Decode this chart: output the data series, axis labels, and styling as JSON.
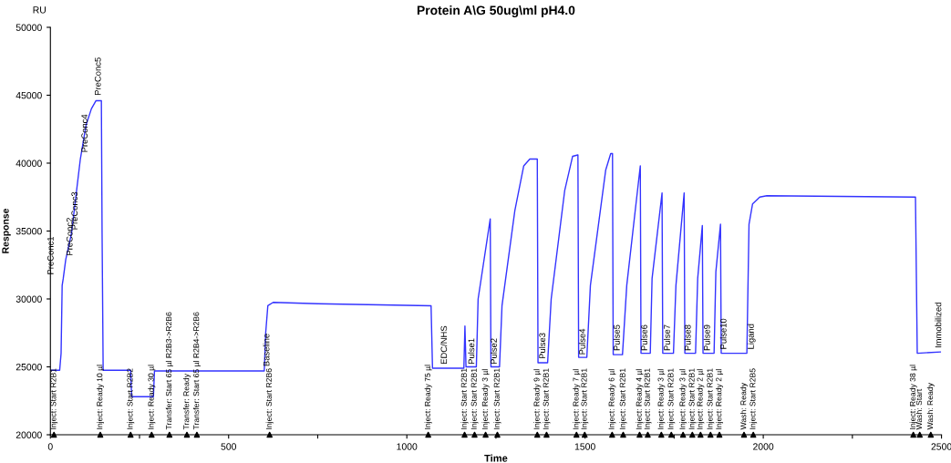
{
  "chart_data": {
    "type": "line",
    "title": "Protein A\\G 50ug\\ml pH4.0",
    "xlabel": "Time",
    "ylabel": "Response",
    "xlim": [
      0,
      2500
    ],
    "ylim": [
      20000,
      50000
    ],
    "xticks": [
      0,
      {
        "value": 250,
        "label": null
      },
      500,
      {
        "value": 750,
        "label": null
      },
      1000,
      {
        "value": 1250,
        "label": null
      },
      1500,
      {
        "value": 1750,
        "label": null
      },
      2000,
      {
        "value": 2250,
        "label": null
      },
      2500
    ],
    "yticks": [
      20000,
      25000,
      30000,
      35000,
      40000,
      45000,
      50000
    ],
    "grid": false,
    "marker": "none",
    "line_style": "solid",
    "series": [
      {
        "color": "#3333ff",
        "x": [
          0,
          26,
          30,
          33,
          36,
          43,
          59,
          84,
          100,
          115,
          128,
          143,
          145,
          148,
          225,
          228,
          289,
          292,
          600,
          604,
          610,
          625,
          750,
          1068,
          1072,
          1160,
          1163,
          1166,
          1195,
          1200,
          1234,
          1236,
          1260,
          1267,
          1303,
          1328,
          1345,
          1366,
          1368,
          1395,
          1405,
          1443,
          1465,
          1480,
          1482,
          1505,
          1515,
          1558,
          1572,
          1577,
          1579,
          1605,
          1617,
          1655,
          1657,
          1683,
          1688,
          1716,
          1718,
          1748,
          1755,
          1778,
          1780,
          1810,
          1816,
          1829,
          1831,
          1862,
          1867,
          1880,
          1882,
          1954,
          1960,
          1970,
          1990,
          2010,
          2427,
          2432,
          2497
        ],
        "values": [
          24750,
          24750,
          26000,
          31000,
          31500,
          32900,
          34800,
          40300,
          42800,
          44000,
          44600,
          44600,
          34800,
          24750,
          24750,
          22800,
          22800,
          24700,
          24700,
          27500,
          29500,
          29750,
          29650,
          29500,
          24900,
          24900,
          28000,
          25000,
          25000,
          30000,
          35900,
          25000,
          25000,
          29500,
          36500,
          39800,
          40300,
          40300,
          25300,
          25300,
          30000,
          38000,
          40500,
          40600,
          25700,
          25700,
          31000,
          39500,
          40700,
          40700,
          25900,
          25900,
          31000,
          39800,
          26000,
          26000,
          31500,
          37800,
          26000,
          26000,
          31000,
          37800,
          26000,
          26000,
          31500,
          35400,
          26000,
          26000,
          32000,
          35500,
          26000,
          26000,
          35500,
          37000,
          37500,
          37600,
          37500,
          26000,
          26100
        ]
      },
      {
        "type": "scatter",
        "color": "#000000",
        "marker": "triangle",
        "x": [
          10,
          140,
          225,
          284,
          334,
          383,
          411,
          615,
          1060,
          1162,
          1190,
          1221,
          1254,
          1366,
          1392,
          1476,
          1499,
          1576,
          1607,
          1653,
          1676,
          1714,
          1742,
          1775,
          1801,
          1824,
          1852,
          1877,
          1946,
          1972,
          2421,
          2439,
          2470
        ],
        "values": [
          20000,
          20000,
          20000,
          20000,
          20000,
          20000,
          20000,
          20000,
          20000,
          20000,
          20000,
          20000,
          20000,
          20000,
          20000,
          20000,
          20000,
          20000,
          20000,
          20000,
          20000,
          20000,
          20000,
          20000,
          20000,
          20000,
          20000,
          20000,
          20000,
          20000,
          20000,
          20000,
          20000
        ],
        "value_labels": [
          "Inject: Start R2B1",
          "Inject: Ready 10 µl",
          "Inject: Start R2B2",
          "Inject: Ready 30 µl",
          "Transfer: Start 65 µl R2B3->R2B6",
          "Transfer: Ready",
          "Transfer: Start 65 µl R2B4->R2B6",
          "Inject: Start R2B6",
          "Inject: Ready 75 µl",
          "Inject: Start R2B1",
          "Inject: Start R2B1",
          "Inject: Ready 3 µl",
          "Inject: Start R2B1",
          "Inject: Ready 9 µl",
          "Inject: Start R2B1",
          "Inject: Ready 7 µl",
          "Inject: Start R2B1",
          "Inject: Ready 6 µl",
          "Inject: Start R2B1",
          "Inject: Ready 4 µl",
          "Inject: Start R2B1",
          "Inject: Ready 3 µl",
          "Inject: Start R2B1",
          "Inject: Ready 3 µl",
          "Inject: Start R2B1",
          "Inject: Ready 2 µl",
          "Inject: Start R2B1",
          "Inject: Ready 2 µl",
          "Wash: Ready",
          "Inject: Start R2B5",
          "Inject: Ready 38 µl",
          "Wash: Start",
          "Wash: Ready"
        ]
      }
    ],
    "annotations": [
      "RU",
      {
        "text": "PreConc1",
        "x": 36,
        "y": 31500
      },
      {
        "text": "PreConc2",
        "x": 45,
        "y": 32900
      },
      {
        "text": "PreConc3",
        "x": 59,
        "y": 34800
      },
      {
        "text": "PreConc4",
        "x": 87,
        "y": 40500
      },
      {
        "text": "PreConc5",
        "x": 135,
        "y": 44700
      },
      {
        "text": "Baseline",
        "x": 608,
        "y": 24750
      },
      {
        "text": "EDC/NHS",
        "x": 1106,
        "y": 24900
      },
      {
        "text": "Pulse1",
        "x": 1183,
        "y": 24900
      },
      {
        "text": "Pulse2",
        "x": 1246,
        "y": 24900
      },
      {
        "text": "Pulse3",
        "x": 1382,
        "y": 25300
      },
      {
        "text": "Pulse4",
        "x": 1494,
        "y": 25600
      },
      {
        "text": "Pulse5",
        "x": 1591,
        "y": 25900
      },
      {
        "text": "Pulse6",
        "x": 1668,
        "y": 25900
      },
      {
        "text": "Pulse7",
        "x": 1732,
        "y": 25900
      },
      {
        "text": "Pulse8",
        "x": 1790,
        "y": 25900
      },
      {
        "text": "Pulse9",
        "x": 1844,
        "y": 25900
      },
      {
        "text": "Pulse10",
        "x": 1890,
        "y": 26000
      },
      {
        "text": "Ligand",
        "x": 1967,
        "y": 26000
      },
      {
        "text": "Immobilized",
        "x": 2493,
        "y": 26100
      }
    ]
  }
}
